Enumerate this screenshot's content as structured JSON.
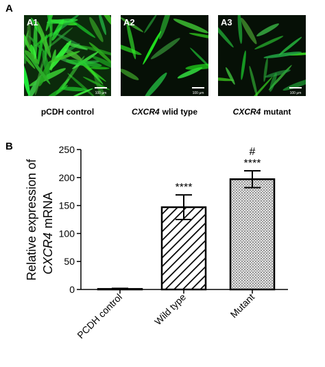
{
  "panel_a": {
    "label": "A",
    "images": [
      {
        "label": "A1",
        "scale": "100 μm",
        "caption": {
          "text": "pCDH control"
        }
      },
      {
        "label": "A2",
        "scale": "100 μm",
        "caption": {
          "gene": "CXCR4",
          "text": "wlid type"
        }
      },
      {
        "label": "A3",
        "scale": "100 μm",
        "caption": {
          "gene": "CXCR4",
          "text": "mutant"
        }
      }
    ]
  },
  "chart_data": {
    "type": "bar",
    "label": "B",
    "ylabel": {
      "line1": "Relative expression of",
      "gene": "CXCR4",
      "rest": "mRNA"
    },
    "categories": [
      "PCDH control",
      "Wild type",
      "Mutant"
    ],
    "values": [
      1,
      147,
      197
    ],
    "errors": [
      1,
      22,
      15
    ],
    "annotations": [
      null,
      "****",
      "****"
    ],
    "significance": [
      null,
      null,
      "#"
    ],
    "fills": [
      "plain",
      "hatch",
      "dots"
    ],
    "ylim": [
      0,
      250
    ],
    "yticks": [
      0,
      50,
      100,
      150,
      200,
      250
    ]
  }
}
